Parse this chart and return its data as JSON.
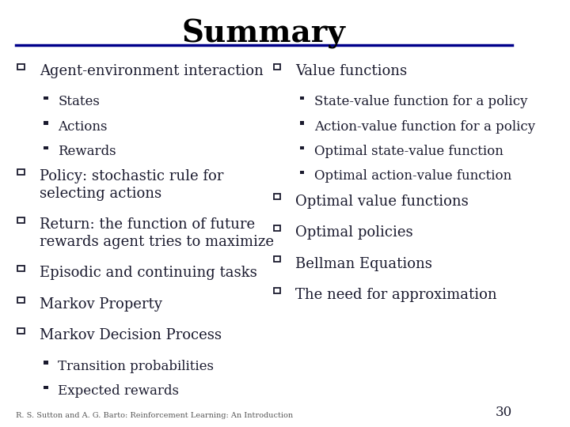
{
  "title": "Summary",
  "title_fontsize": 28,
  "title_font": "serif",
  "title_color": "#000000",
  "line_color": "#00008B",
  "bg_color": "#ffffff",
  "text_color": "#1a1a2e",
  "body_fontsize": 13,
  "sub_fontsize": 12,
  "footer_text": "R. S. Sutton and A. G. Barto: Reinforcement Learning: An Introduction",
  "page_number": "30",
  "left_col": [
    {
      "level": 0,
      "text": "Agent-environment interaction"
    },
    {
      "level": 1,
      "text": "States"
    },
    {
      "level": 1,
      "text": "Actions"
    },
    {
      "level": 1,
      "text": "Rewards"
    },
    {
      "level": 0,
      "text": "Policy: stochastic rule for\nselecting actions"
    },
    {
      "level": 0,
      "text": "Return: the function of future\nrewards agent tries to maximize"
    },
    {
      "level": 0,
      "text": "Episodic and continuing tasks"
    },
    {
      "level": 0,
      "text": "Markov Property"
    },
    {
      "level": 0,
      "text": "Markov Decision Process"
    },
    {
      "level": 1,
      "text": "Transition probabilities"
    },
    {
      "level": 1,
      "text": "Expected rewards"
    }
  ],
  "right_col": [
    {
      "level": 0,
      "text": "Value functions"
    },
    {
      "level": 1,
      "text": "State-value function for a policy"
    },
    {
      "level": 1,
      "text": "Action-value function for a policy"
    },
    {
      "level": 1,
      "text": "Optimal state-value function"
    },
    {
      "level": 1,
      "text": "Optimal action-value function"
    },
    {
      "level": 0,
      "text": "Optimal value functions"
    },
    {
      "level": 0,
      "text": "Optimal policies"
    },
    {
      "level": 0,
      "text": "Bellman Equations"
    },
    {
      "level": 0,
      "text": "The need for approximation"
    }
  ]
}
